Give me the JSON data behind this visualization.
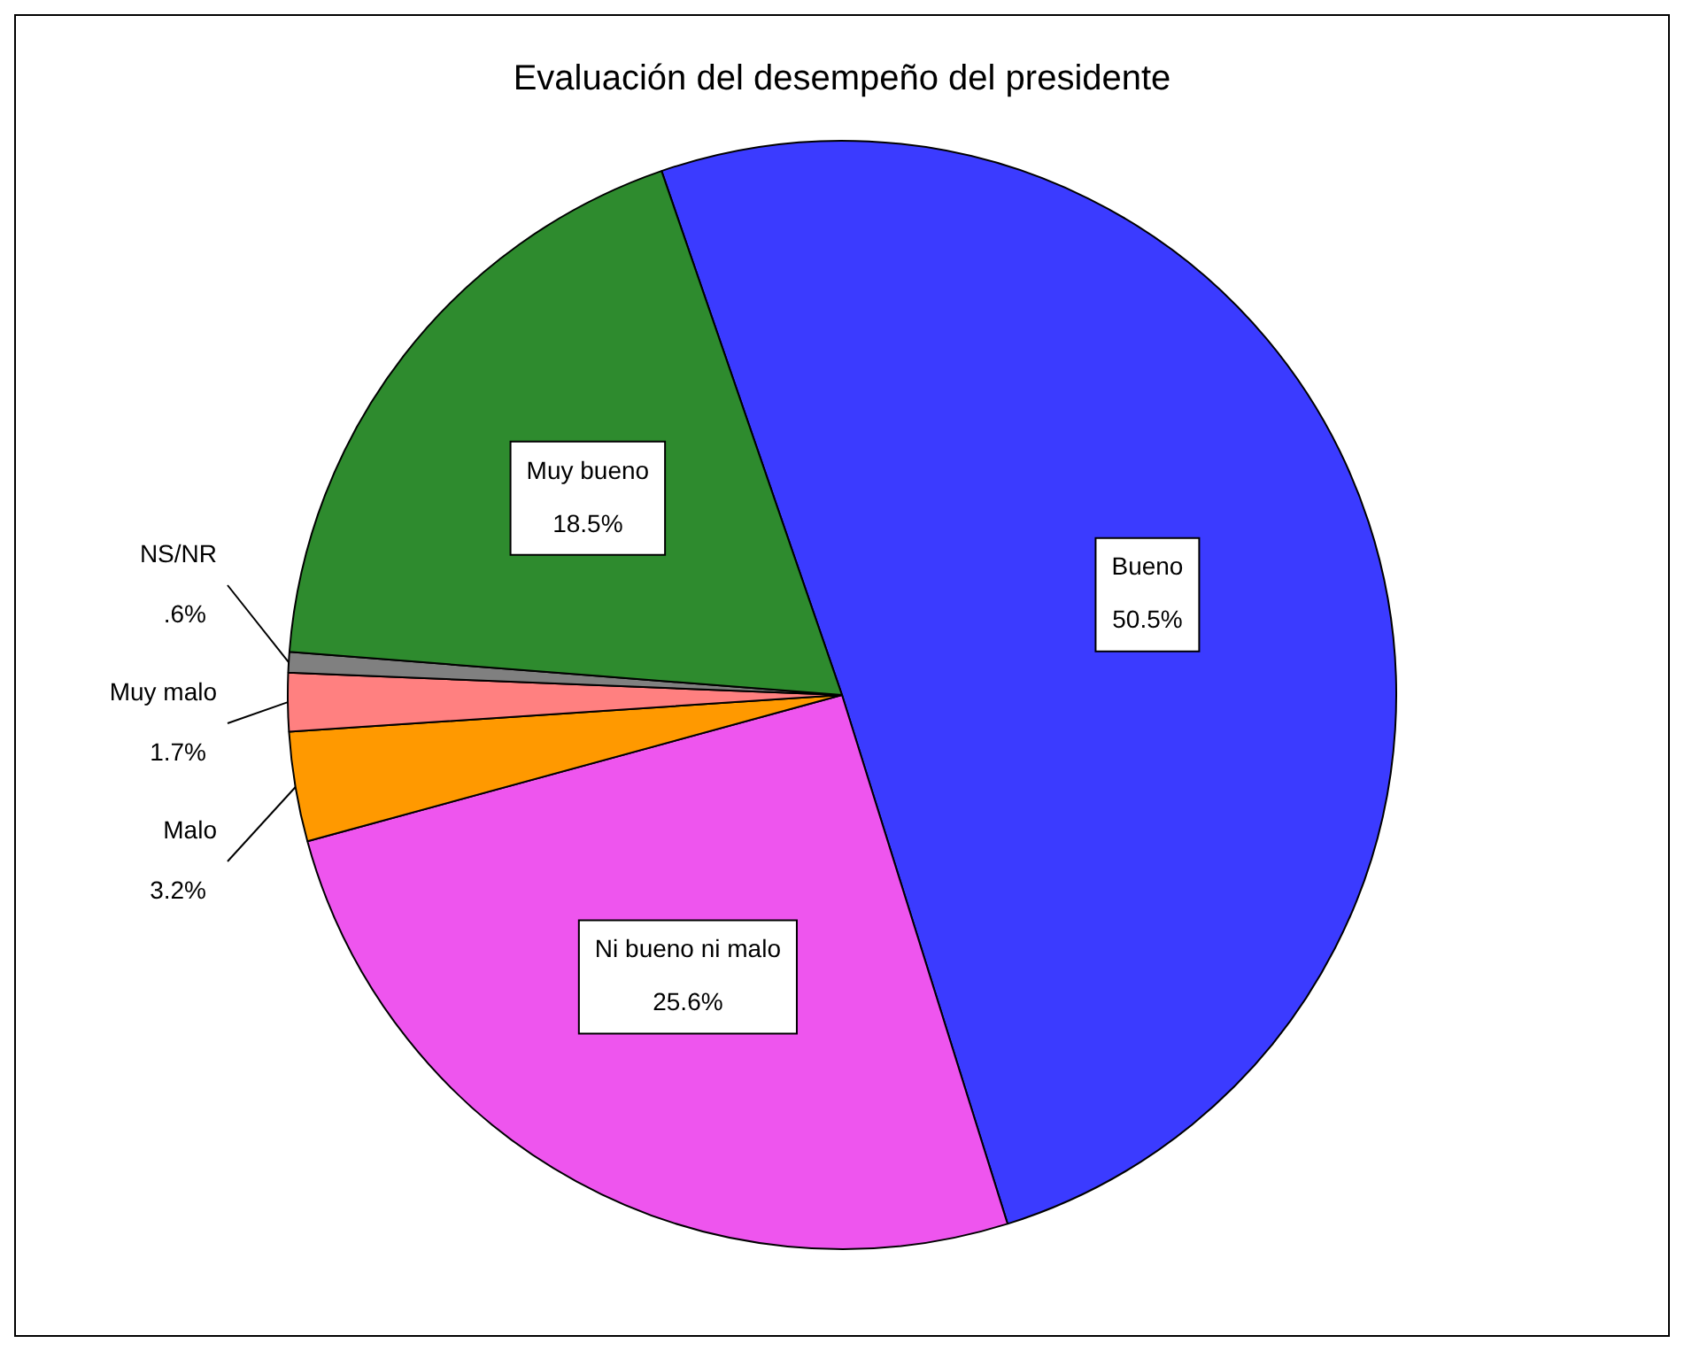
{
  "chart_data": {
    "type": "pie",
    "title": "Evaluación del desempeño del presidente",
    "categories": [
      "Bueno",
      "Ni bueno ni malo",
      "Malo",
      "Muy malo",
      "NS/NR",
      "Muy bueno"
    ],
    "values": [
      50.5,
      25.6,
      3.2,
      1.7,
      0.6,
      18.5
    ],
    "value_labels": [
      "50.5%",
      "25.6%",
      "3.2%",
      "1.7%",
      ".6%",
      "18.5%"
    ],
    "colors": [
      "#3b3bff",
      "#ee55ee",
      "#ff9900",
      "#ff8080",
      "#808080",
      "#2e8b2e"
    ],
    "legend": false
  }
}
